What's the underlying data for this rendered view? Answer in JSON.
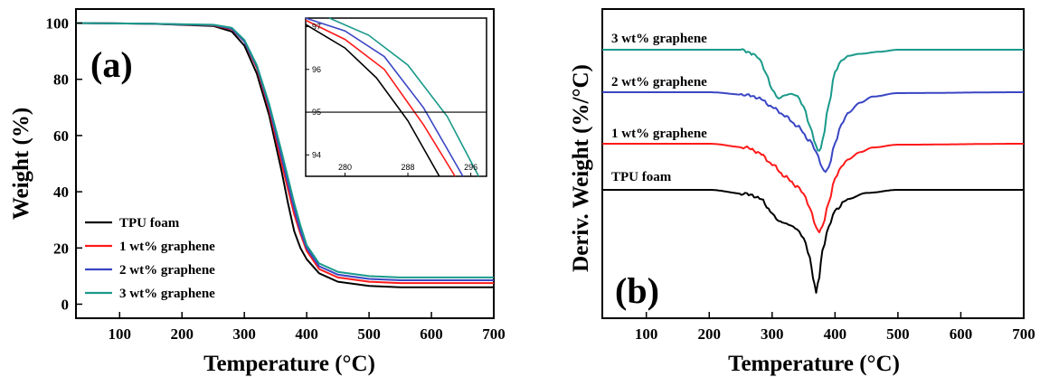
{
  "colors": {
    "tpu": "#000000",
    "g1": "#ff1a1a",
    "g2": "#3a46c4",
    "g3": "#1a9a8a"
  },
  "chart_data": [
    {
      "panel": "(a)",
      "type": "line",
      "xlabel": "Temperature (°C)",
      "ylabel": "Weight (%)",
      "xlim": [
        30,
        700
      ],
      "ylim": [
        -5,
        105
      ],
      "xticks": [
        "100",
        "200",
        "300",
        "400",
        "500",
        "600",
        "700"
      ],
      "yticks": [
        "0",
        "20",
        "40",
        "60",
        "80",
        "100"
      ],
      "legend_position": "bottom-left",
      "series": [
        {
          "name": "TPU foam",
          "color": "#000000",
          "x": [
            30,
            150,
            250,
            280,
            300,
            320,
            340,
            360,
            370,
            380,
            390,
            400,
            420,
            450,
            500,
            550,
            600,
            700
          ],
          "y": [
            100,
            99.8,
            99,
            97,
            92,
            82,
            67,
            47,
            36,
            26,
            20,
            16,
            11,
            8,
            6.5,
            6,
            6,
            6
          ]
        },
        {
          "name": "1 wt% graphene",
          "color": "#ff1a1a",
          "x": [
            30,
            150,
            250,
            280,
            300,
            320,
            340,
            360,
            370,
            380,
            390,
            400,
            420,
            450,
            500,
            550,
            600,
            700
          ],
          "y": [
            100,
            99.8,
            99.2,
            97.8,
            93.5,
            84,
            69,
            50,
            41,
            32,
            25,
            19,
            12.5,
            9.5,
            8,
            7.5,
            7.5,
            7.5
          ]
        },
        {
          "name": "2 wt% graphene",
          "color": "#3a46c4",
          "x": [
            30,
            150,
            250,
            280,
            300,
            320,
            340,
            360,
            370,
            380,
            390,
            400,
            420,
            450,
            500,
            550,
            600,
            700
          ],
          "y": [
            100,
            99.8,
            99.3,
            98,
            93.5,
            84.5,
            70,
            52,
            43,
            34,
            26,
            20,
            13.5,
            10.5,
            9,
            8.5,
            8.5,
            8.5
          ]
        },
        {
          "name": "3 wt% graphene",
          "color": "#1a9a8a",
          "x": [
            30,
            150,
            250,
            280,
            300,
            320,
            340,
            360,
            370,
            380,
            390,
            400,
            420,
            450,
            500,
            550,
            600,
            700
          ],
          "y": [
            100,
            99.8,
            99.4,
            98.3,
            94,
            85,
            71,
            54,
            45,
            36,
            28,
            21,
            14.5,
            11.5,
            10,
            9.5,
            9.5,
            9.5
          ]
        }
      ],
      "inset": {
        "xlim": [
          275,
          298
        ],
        "ylim": [
          93.5,
          97.2
        ],
        "xticks": [
          "280",
          "288",
          "296"
        ],
        "yticks": [
          "94",
          "95",
          "96",
          "97"
        ],
        "hline": 95,
        "series": [
          {
            "name": "TPU foam",
            "color": "#000000",
            "x": [
              275,
              280,
              284,
              288,
              292
            ],
            "y": [
              97.05,
              96.5,
              95.8,
              94.8,
              93.5
            ]
          },
          {
            "name": "1 wt% graphene",
            "color": "#ff1a1a",
            "x": [
              275,
              280,
              285,
              290,
              294
            ],
            "y": [
              97.15,
              96.7,
              96.0,
              94.7,
              93.5
            ]
          },
          {
            "name": "2 wt% graphene",
            "color": "#3a46c4",
            "x": [
              275,
              280,
              285,
              290,
              295
            ],
            "y": [
              97.2,
              96.9,
              96.3,
              95.1,
              93.5
            ]
          },
          {
            "name": "3 wt% graphene",
            "color": "#1a9a8a",
            "x": [
              278,
              283,
              288,
              293,
              297
            ],
            "y": [
              97.2,
              96.8,
              96.1,
              94.9,
              93.5
            ]
          }
        ]
      }
    },
    {
      "panel": "(b)",
      "type": "line",
      "xlabel": "Temperature (°C)",
      "ylabel": "Deriv. Weight (%/°C)",
      "xlim": [
        30,
        700
      ],
      "xticks": [
        "100",
        "200",
        "300",
        "400",
        "500",
        "600",
        "700"
      ],
      "grid": false,
      "series": [
        {
          "name": "TPU foam",
          "color": "#000000",
          "x": [
            30,
            200,
            260,
            280,
            300,
            310,
            320,
            330,
            340,
            350,
            360,
            365,
            370,
            375,
            380,
            390,
            400,
            420,
            450,
            500,
            700
          ],
          "y": [
            0.0,
            0.0,
            -0.04,
            -0.08,
            -0.22,
            -0.3,
            -0.33,
            -0.36,
            -0.4,
            -0.48,
            -0.66,
            -0.86,
            -1.0,
            -0.85,
            -0.58,
            -0.35,
            -0.2,
            -0.09,
            -0.03,
            0.0,
            0.0
          ]
        },
        {
          "name": "1 wt% graphene",
          "color": "#ff1a1a",
          "x": [
            30,
            200,
            260,
            280,
            300,
            320,
            340,
            350,
            360,
            370,
            375,
            380,
            390,
            400,
            410,
            420,
            440,
            460,
            500,
            700
          ],
          "y": [
            0.0,
            0.0,
            -0.04,
            -0.1,
            -0.22,
            -0.35,
            -0.46,
            -0.55,
            -0.7,
            -0.9,
            -0.95,
            -0.88,
            -0.62,
            -0.36,
            -0.24,
            -0.17,
            -0.09,
            -0.04,
            -0.01,
            0.0
          ]
        },
        {
          "name": "2 wt% graphene",
          "color": "#3a46c4",
          "x": [
            30,
            200,
            260,
            280,
            300,
            320,
            340,
            360,
            370,
            380,
            385,
            390,
            400,
            410,
            420,
            440,
            460,
            500,
            700
          ],
          "y": [
            0.0,
            0.0,
            -0.03,
            -0.07,
            -0.17,
            -0.27,
            -0.39,
            -0.56,
            -0.7,
            -0.88,
            -0.92,
            -0.86,
            -0.58,
            -0.36,
            -0.24,
            -0.12,
            -0.05,
            -0.01,
            0.0
          ]
        },
        {
          "name": "3 wt% graphene",
          "color": "#1a9a8a",
          "x": [
            30,
            250,
            270,
            280,
            290,
            300,
            310,
            320,
            330,
            340,
            350,
            360,
            370,
            375,
            380,
            390,
            400,
            410,
            420,
            440,
            470,
            500,
            700
          ],
          "y": [
            0.0,
            0.0,
            -0.04,
            -0.1,
            -0.24,
            -0.4,
            -0.48,
            -0.44,
            -0.42,
            -0.44,
            -0.55,
            -0.75,
            -0.95,
            -1.0,
            -0.9,
            -0.55,
            -0.22,
            -0.1,
            -0.06,
            -0.04,
            -0.02,
            0.0,
            0.0
          ]
        }
      ]
    }
  ]
}
